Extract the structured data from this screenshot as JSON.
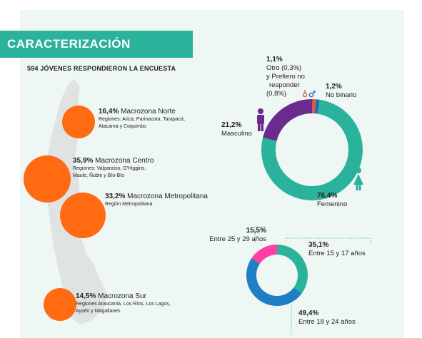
{
  "header": {
    "title": "CARACTERIZACIÓN",
    "subtitle": "594 JÓVENES RESPONDIERON LA ENCUESTA"
  },
  "regions": [
    {
      "pct": "16,4%",
      "name": "Macrozona Norte",
      "detail": "Regiones: Arica, Parinacota, Tarapacá,",
      "detail2": "Atacama y Coquimbo",
      "value": 16.4
    },
    {
      "pct": "35,9%",
      "name": "Macrozona Centro",
      "detail": "Regiones: Valparaíso, O'Higgins,",
      "detail2": "Maule, Ñuble y Bío-Bío",
      "value": 35.9
    },
    {
      "pct": "33,2%",
      "name": "Macrozona Metropolitana",
      "detail": "Región Metropolitana",
      "detail2": "",
      "value": 33.2
    },
    {
      "pct": "14,5%",
      "name": "Macrozona Sur",
      "detail": "Regiones Araucanía, Los Ríos, Los Lagos,",
      "detail2": "Aysén y Magallanes",
      "value": 14.5
    }
  ],
  "colors": {
    "accent": "#2ab29b",
    "bubble": "#ff6a13",
    "femenino": "#2ab29b",
    "masculino": "#6a2a8e",
    "otro": "#e8573a",
    "nobinario": "#1f6fb5",
    "age_15_17": "#2ab29b",
    "age_18_24": "#1f7ec4",
    "age_25_29": "#ff3fa4"
  },
  "gender_labels": {
    "otro_pct": "1,1%",
    "otro_line1": "Otro (0,3%)",
    "otro_line2": "y Prefiero no",
    "otro_line3": "responder",
    "otro_line4": "(0,8%)",
    "nb_pct": "1,2%",
    "nb_label": "No binario",
    "masc_pct": "21,2%",
    "masc_label": "Masculino",
    "fem_pct": "76,4%",
    "fem_label": "Femenino"
  },
  "age_labels": {
    "a1_pct": "35,1%",
    "a1_label": "Entre 15 y 17 años",
    "a2_pct": "49,4%",
    "a2_label": "Entre 18 y 24 años",
    "a3_pct": "15,5%",
    "a3_label": "Entre 25 y 29 años"
  },
  "chart_data": [
    {
      "type": "pie",
      "categories": [
        "Femenino",
        "Masculino",
        "Otro y Prefiero no responder",
        "No binario"
      ],
      "values": [
        76.4,
        21.2,
        1.1,
        1.2
      ]
    },
    {
      "type": "pie",
      "categories": [
        "Entre 15 y 17 años",
        "Entre 18 y 24 años",
        "Entre 25 y 29 años"
      ],
      "values": [
        35.1,
        49.4,
        15.5
      ]
    }
  ]
}
